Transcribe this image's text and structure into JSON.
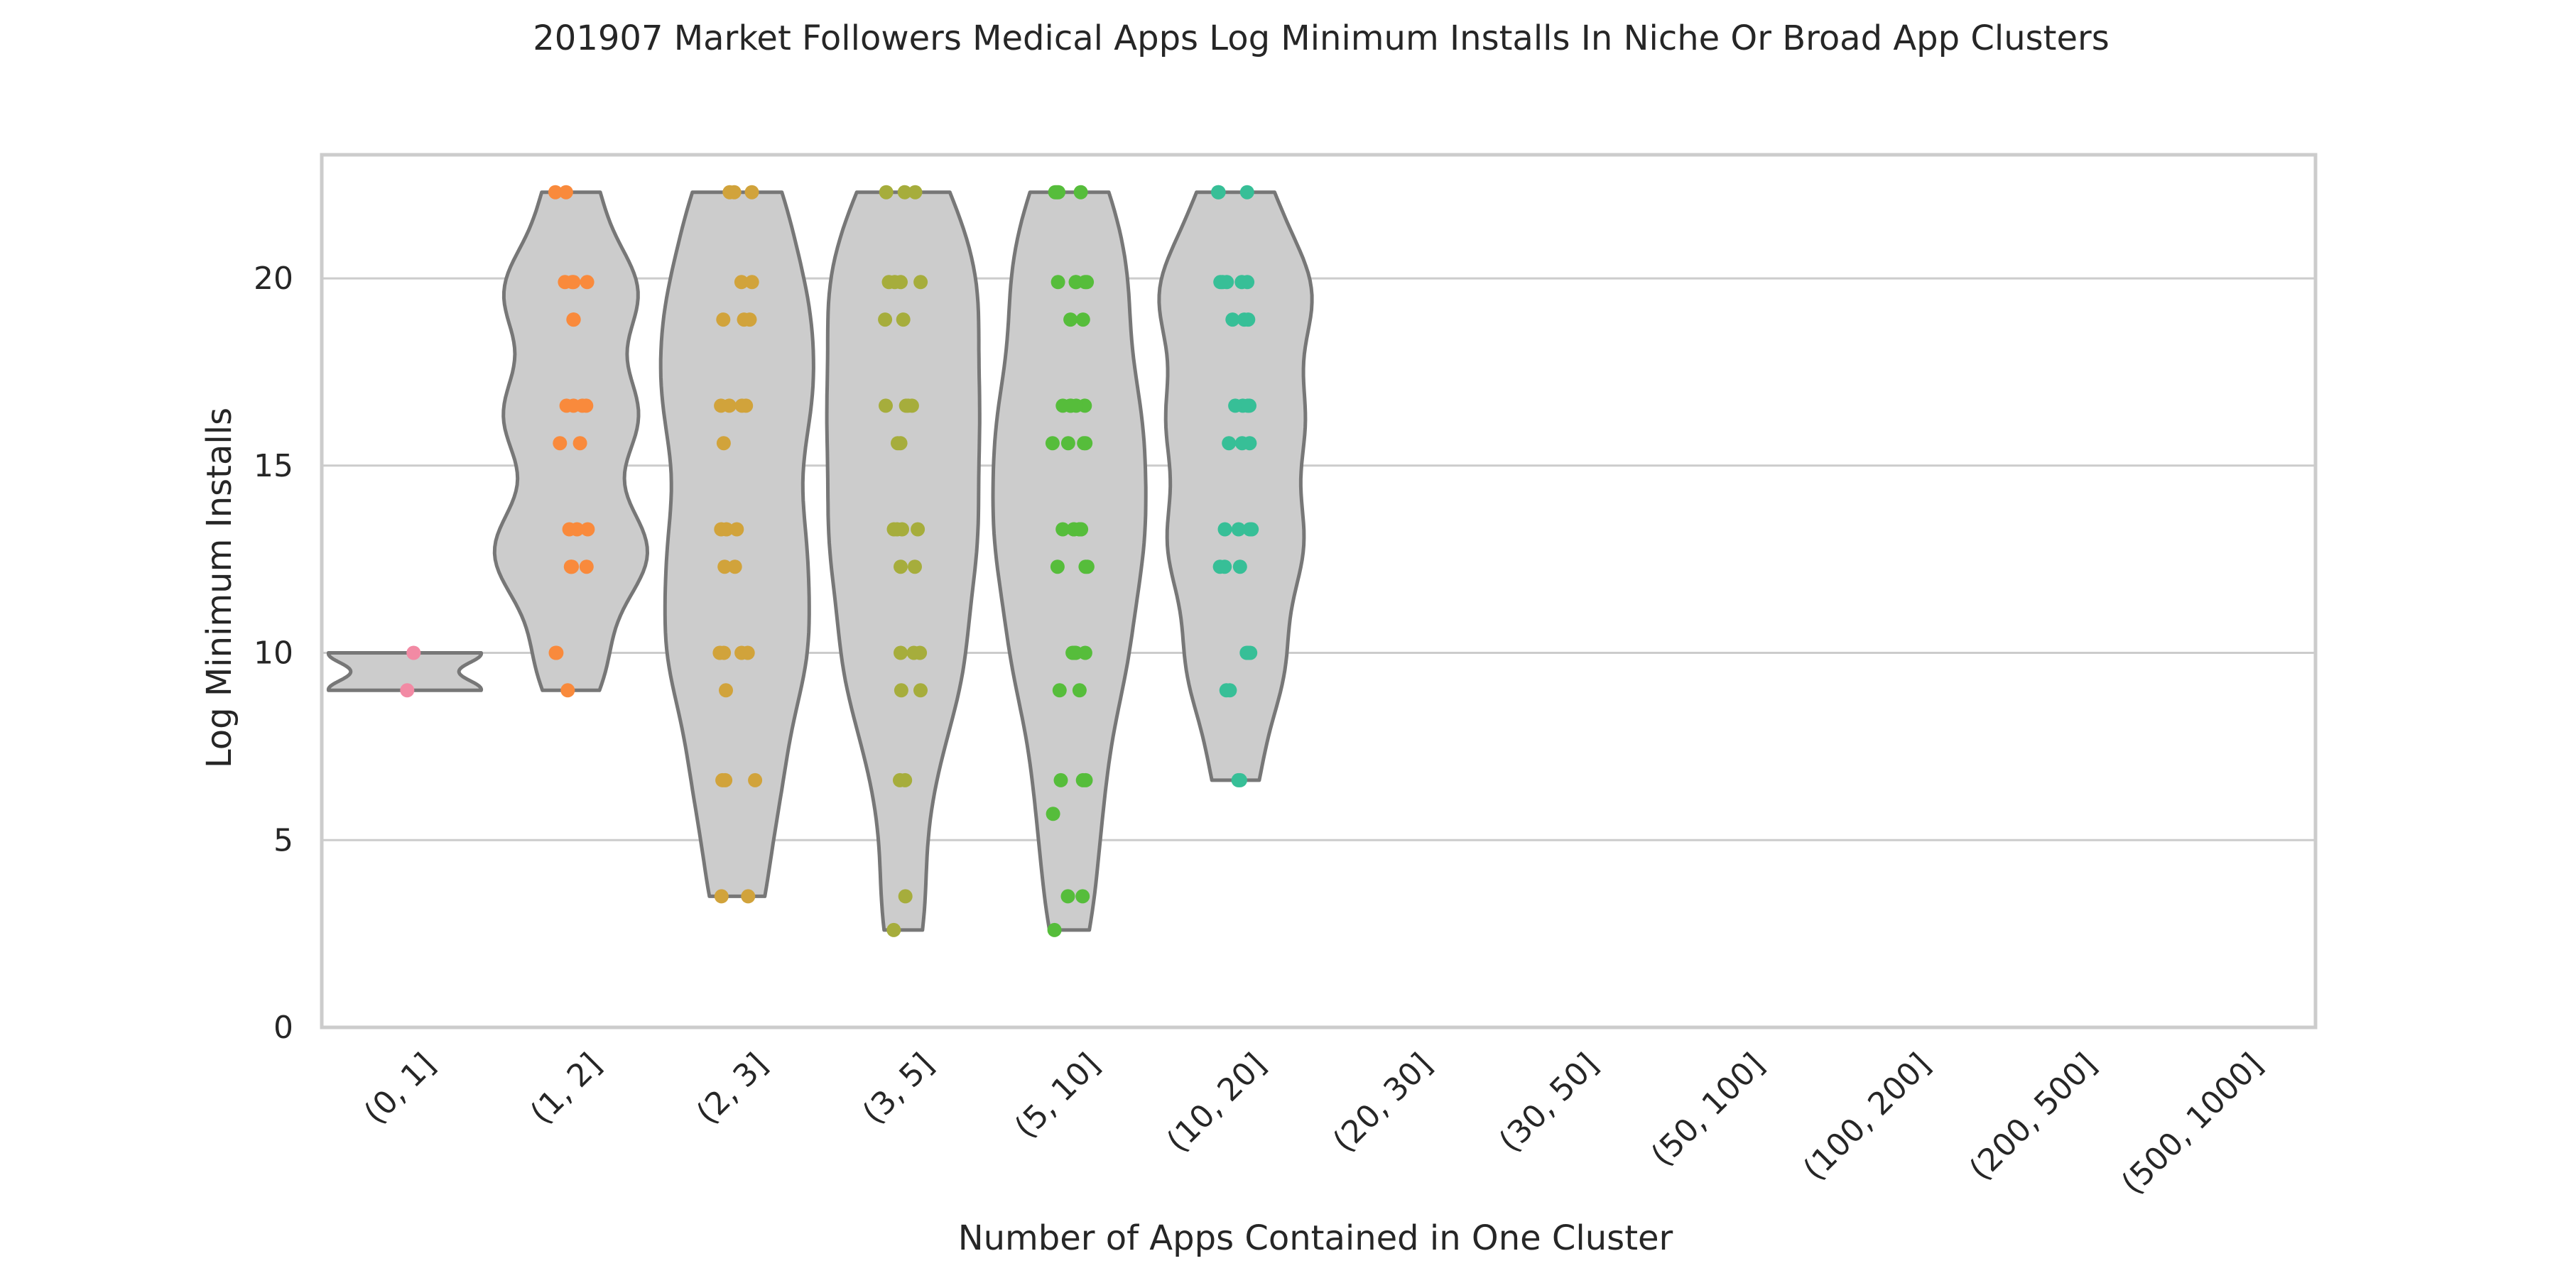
{
  "chart_data": {
    "type": "violin",
    "title": "201907 Market Followers Medical Apps Log Minimum Installs In Niche Or Broad App Clusters",
    "xlabel": "Number of Apps Contained in One Cluster",
    "ylabel": "Log Minimum Installs",
    "ylim": [
      0,
      23.3
    ],
    "yticks": [
      "0",
      "5",
      "10",
      "15",
      "20"
    ],
    "grid": "horizontal",
    "categories": [
      "(0, 1]",
      "(1, 2]",
      "(2, 3]",
      "(3, 5]",
      "(5, 10]",
      "(10, 20]",
      "(20, 30]",
      "(30, 50]",
      "(50, 100]",
      "(100, 200]",
      "(200, 500]",
      "(500, 1000]"
    ],
    "series": [
      {
        "category": "(0, 1]",
        "color": "#f28aa4",
        "min": 9.0,
        "max": 10.0,
        "points": [
          10.0,
          9.0
        ]
      },
      {
        "category": "(1, 2]",
        "color": "#f98a3c",
        "min": 9.0,
        "max": 22.3,
        "points": [
          22.3,
          22.3,
          19.9,
          19.9,
          19.9,
          19.9,
          18.9,
          18.9,
          16.6,
          16.6,
          16.6,
          16.6,
          15.6,
          15.6,
          13.3,
          13.3,
          13.3,
          12.3,
          12.3,
          12.3,
          12.3,
          10.0,
          10.0,
          9.0
        ]
      },
      {
        "category": "(2, 3]",
        "color": "#d1a33b",
        "min": 3.5,
        "max": 22.3,
        "points": [
          22.3,
          22.3,
          22.3,
          19.9,
          19.9,
          18.9,
          18.9,
          18.9,
          16.6,
          16.6,
          16.6,
          16.6,
          15.6,
          13.3,
          13.3,
          13.3,
          12.3,
          12.3,
          10.0,
          10.0,
          10.0,
          10.0,
          9.0,
          6.6,
          6.6,
          6.6,
          3.5,
          3.5
        ]
      },
      {
        "category": "(3, 5]",
        "color": "#a6ad3c",
        "min": 2.6,
        "max": 22.3,
        "points": [
          22.3,
          22.3,
          22.3,
          19.9,
          19.9,
          19.9,
          19.9,
          18.9,
          18.9,
          16.6,
          16.6,
          16.6,
          16.6,
          15.6,
          15.6,
          13.3,
          13.3,
          13.3,
          13.3,
          12.3,
          12.3,
          10.0,
          10.0,
          10.0,
          9.0,
          9.0,
          6.6,
          6.6,
          3.5,
          2.6
        ]
      },
      {
        "category": "(5, 10]",
        "color": "#56bd3b",
        "min": 2.6,
        "max": 22.3,
        "points": [
          22.3,
          22.3,
          22.3,
          22.3,
          19.9,
          19.9,
          19.9,
          19.9,
          19.9,
          18.9,
          18.9,
          16.6,
          16.6,
          16.6,
          16.6,
          16.6,
          15.6,
          15.6,
          15.6,
          15.6,
          13.3,
          13.3,
          13.3,
          13.3,
          13.3,
          13.3,
          12.3,
          12.3,
          12.3,
          10.0,
          10.0,
          10.0,
          10.0,
          10.0,
          9.0,
          9.0,
          6.6,
          6.6,
          6.6,
          5.7,
          3.5,
          3.5,
          2.6
        ]
      },
      {
        "category": "(10, 20]",
        "color": "#37bf97",
        "min": 6.6,
        "max": 22.3,
        "points": [
          22.3,
          22.3,
          22.3,
          19.9,
          19.9,
          19.9,
          19.9,
          19.9,
          18.9,
          18.9,
          18.9,
          16.6,
          16.6,
          16.6,
          16.6,
          15.6,
          15.6,
          15.6,
          13.3,
          13.3,
          13.3,
          13.3,
          12.3,
          12.3,
          12.3,
          10.0,
          10.0,
          10.0,
          9.0,
          9.0,
          6.6,
          6.6
        ]
      }
    ],
    "violin_fill": "#cccccc",
    "violin_stroke": "#777777",
    "grid_color": "#cccccc",
    "frame_color": "#cccccc"
  }
}
